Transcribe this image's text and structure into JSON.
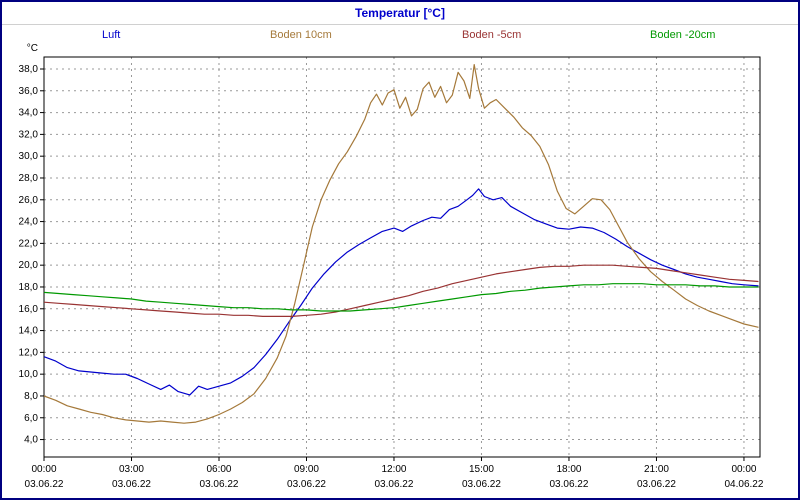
{
  "window": {
    "title": "Temperatur [°C]"
  },
  "legend": {
    "items": [
      {
        "label": "Luft",
        "color": "#0000cc"
      },
      {
        "label": "Boden 10cm",
        "color": "#a5793a"
      },
      {
        "label": "Boden -5cm",
        "color": "#993333"
      },
      {
        "label": "Boden -20cm",
        "color": "#009900"
      }
    ]
  },
  "chart_data": {
    "type": "line",
    "title": "Temperatur [°C]",
    "y_axis_label": "°C",
    "grid": true,
    "legend_position": "top",
    "xlim": [
      0,
      24.55
    ],
    "ylim": [
      2.4,
      39.1
    ],
    "x_unit": "hours from 03.06.22 00:00",
    "y_ticks": [
      {
        "value": 38,
        "label": "38,0"
      },
      {
        "value": 36,
        "label": "36,0"
      },
      {
        "value": 34,
        "label": "34,0"
      },
      {
        "value": 32,
        "label": "32,0"
      },
      {
        "value": 30,
        "label": "30,0"
      },
      {
        "value": 28,
        "label": "28,0"
      },
      {
        "value": 26,
        "label": "26,0"
      },
      {
        "value": 24,
        "label": "24,0"
      },
      {
        "value": 22,
        "label": "22,0"
      },
      {
        "value": 20,
        "label": "20,0"
      },
      {
        "value": 18,
        "label": "18,0"
      },
      {
        "value": 16,
        "label": "16,0"
      },
      {
        "value": 14,
        "label": "14,0"
      },
      {
        "value": 12,
        "label": "12,0"
      },
      {
        "value": 10,
        "label": "10,0"
      },
      {
        "value": 8,
        "label": "8,0"
      },
      {
        "value": 6,
        "label": "6,0"
      },
      {
        "value": 4,
        "label": "4,0"
      }
    ],
    "x_ticks": [
      {
        "hour": 0,
        "time": "00:00",
        "date": "03.06.22"
      },
      {
        "hour": 3,
        "time": "03:00",
        "date": "03.06.22"
      },
      {
        "hour": 6,
        "time": "06:00",
        "date": "03.06.22"
      },
      {
        "hour": 9,
        "time": "09:00",
        "date": "03.06.22"
      },
      {
        "hour": 12,
        "time": "12:00",
        "date": "03.06.22"
      },
      {
        "hour": 15,
        "time": "15:00",
        "date": "03.06.22"
      },
      {
        "hour": 18,
        "time": "18:00",
        "date": "03.06.22"
      },
      {
        "hour": 21,
        "time": "21:00",
        "date": "03.06.22"
      },
      {
        "hour": 24,
        "time": "00:00",
        "date": "04.06.22"
      }
    ],
    "series": [
      {
        "name": "Luft",
        "color": "#0000cc",
        "points": [
          [
            0,
            11.6
          ],
          [
            0.4,
            11.2
          ],
          [
            0.8,
            10.6
          ],
          [
            1.2,
            10.3
          ],
          [
            1.6,
            10.2
          ],
          [
            2,
            10.1
          ],
          [
            2.4,
            10.0
          ],
          [
            2.8,
            10.0
          ],
          [
            3.2,
            9.6
          ],
          [
            3.6,
            9.1
          ],
          [
            4,
            8.6
          ],
          [
            4.3,
            9.0
          ],
          [
            4.6,
            8.4
          ],
          [
            5,
            8.1
          ],
          [
            5.3,
            8.9
          ],
          [
            5.6,
            8.6
          ],
          [
            6,
            8.9
          ],
          [
            6.4,
            9.2
          ],
          [
            6.8,
            9.8
          ],
          [
            7.2,
            10.6
          ],
          [
            7.6,
            11.8
          ],
          [
            8,
            13.2
          ],
          [
            8.4,
            14.8
          ],
          [
            8.8,
            16.3
          ],
          [
            9.2,
            17.9
          ],
          [
            9.6,
            19.2
          ],
          [
            10,
            20.3
          ],
          [
            10.4,
            21.2
          ],
          [
            10.8,
            21.9
          ],
          [
            11.2,
            22.5
          ],
          [
            11.6,
            23.1
          ],
          [
            12,
            23.4
          ],
          [
            12.3,
            23.1
          ],
          [
            12.6,
            23.6
          ],
          [
            13,
            24.1
          ],
          [
            13.3,
            24.4
          ],
          [
            13.6,
            24.3
          ],
          [
            13.9,
            25.1
          ],
          [
            14.2,
            25.4
          ],
          [
            14.5,
            26.0
          ],
          [
            14.7,
            26.4
          ],
          [
            14.9,
            27.0
          ],
          [
            15.1,
            26.3
          ],
          [
            15.4,
            26.0
          ],
          [
            15.7,
            26.2
          ],
          [
            16,
            25.4
          ],
          [
            16.4,
            24.8
          ],
          [
            16.8,
            24.2
          ],
          [
            17.2,
            23.8
          ],
          [
            17.6,
            23.4
          ],
          [
            18,
            23.3
          ],
          [
            18.4,
            23.5
          ],
          [
            18.8,
            23.4
          ],
          [
            19.2,
            23.0
          ],
          [
            19.6,
            22.4
          ],
          [
            20,
            21.7
          ],
          [
            20.4,
            21.1
          ],
          [
            20.8,
            20.5
          ],
          [
            21.2,
            20.0
          ],
          [
            21.6,
            19.6
          ],
          [
            22,
            19.2
          ],
          [
            22.4,
            18.9
          ],
          [
            22.8,
            18.7
          ],
          [
            23.2,
            18.5
          ],
          [
            23.6,
            18.3
          ],
          [
            24,
            18.2
          ],
          [
            24.5,
            18.1
          ]
        ]
      },
      {
        "name": "Boden 10cm",
        "color": "#a5793a",
        "points": [
          [
            0,
            8.0
          ],
          [
            0.4,
            7.6
          ],
          [
            0.8,
            7.1
          ],
          [
            1.2,
            6.8
          ],
          [
            1.6,
            6.5
          ],
          [
            2,
            6.3
          ],
          [
            2.4,
            6.0
          ],
          [
            2.8,
            5.8
          ],
          [
            3.2,
            5.7
          ],
          [
            3.6,
            5.6
          ],
          [
            4,
            5.7
          ],
          [
            4.4,
            5.6
          ],
          [
            4.8,
            5.5
          ],
          [
            5.2,
            5.6
          ],
          [
            5.6,
            5.9
          ],
          [
            6,
            6.3
          ],
          [
            6.4,
            6.8
          ],
          [
            6.8,
            7.4
          ],
          [
            7.2,
            8.2
          ],
          [
            7.6,
            9.6
          ],
          [
            8,
            11.5
          ],
          [
            8.3,
            13.5
          ],
          [
            8.6,
            16.5
          ],
          [
            8.9,
            20.0
          ],
          [
            9.2,
            23.5
          ],
          [
            9.5,
            26.0
          ],
          [
            9.8,
            27.8
          ],
          [
            10.1,
            29.3
          ],
          [
            10.4,
            30.4
          ],
          [
            10.7,
            31.8
          ],
          [
            11,
            33.4
          ],
          [
            11.2,
            34.9
          ],
          [
            11.4,
            35.7
          ],
          [
            11.6,
            34.7
          ],
          [
            11.8,
            35.8
          ],
          [
            12,
            36.1
          ],
          [
            12.2,
            34.4
          ],
          [
            12.4,
            35.4
          ],
          [
            12.6,
            33.7
          ],
          [
            12.8,
            34.3
          ],
          [
            13,
            36.2
          ],
          [
            13.2,
            36.8
          ],
          [
            13.4,
            35.4
          ],
          [
            13.6,
            36.4
          ],
          [
            13.8,
            34.9
          ],
          [
            14,
            35.6
          ],
          [
            14.2,
            37.7
          ],
          [
            14.4,
            36.9
          ],
          [
            14.6,
            35.3
          ],
          [
            14.75,
            38.4
          ],
          [
            14.9,
            36.2
          ],
          [
            15.1,
            34.4
          ],
          [
            15.3,
            34.9
          ],
          [
            15.5,
            35.2
          ],
          [
            15.8,
            34.4
          ],
          [
            16.1,
            33.6
          ],
          [
            16.4,
            32.6
          ],
          [
            16.7,
            31.9
          ],
          [
            17,
            30.9
          ],
          [
            17.3,
            29.2
          ],
          [
            17.6,
            26.8
          ],
          [
            17.9,
            25.2
          ],
          [
            18.2,
            24.7
          ],
          [
            18.5,
            25.4
          ],
          [
            18.8,
            26.1
          ],
          [
            19.1,
            26.0
          ],
          [
            19.4,
            25.1
          ],
          [
            19.7,
            23.6
          ],
          [
            20,
            22.1
          ],
          [
            20.4,
            20.6
          ],
          [
            20.8,
            19.4
          ],
          [
            21.2,
            18.5
          ],
          [
            21.6,
            17.7
          ],
          [
            22,
            16.9
          ],
          [
            22.4,
            16.3
          ],
          [
            22.8,
            15.8
          ],
          [
            23.2,
            15.4
          ],
          [
            23.6,
            15.0
          ],
          [
            24,
            14.6
          ],
          [
            24.5,
            14.3
          ]
        ]
      },
      {
        "name": "Boden -5cm",
        "color": "#993333",
        "points": [
          [
            0,
            16.6
          ],
          [
            0.5,
            16.5
          ],
          [
            1,
            16.4
          ],
          [
            1.5,
            16.3
          ],
          [
            2,
            16.2
          ],
          [
            2.5,
            16.1
          ],
          [
            3,
            16.0
          ],
          [
            3.5,
            15.9
          ],
          [
            4,
            15.8
          ],
          [
            4.5,
            15.7
          ],
          [
            5,
            15.6
          ],
          [
            5.5,
            15.5
          ],
          [
            6,
            15.5
          ],
          [
            6.5,
            15.4
          ],
          [
            7,
            15.4
          ],
          [
            7.5,
            15.3
          ],
          [
            8,
            15.3
          ],
          [
            8.5,
            15.3
          ],
          [
            9,
            15.4
          ],
          [
            9.5,
            15.5
          ],
          [
            10,
            15.7
          ],
          [
            10.5,
            16.0
          ],
          [
            11,
            16.3
          ],
          [
            11.5,
            16.6
          ],
          [
            12,
            16.9
          ],
          [
            12.5,
            17.2
          ],
          [
            13,
            17.6
          ],
          [
            13.5,
            17.9
          ],
          [
            14,
            18.3
          ],
          [
            14.5,
            18.6
          ],
          [
            15,
            18.9
          ],
          [
            15.5,
            19.2
          ],
          [
            16,
            19.4
          ],
          [
            16.5,
            19.6
          ],
          [
            17,
            19.8
          ],
          [
            17.5,
            19.9
          ],
          [
            18,
            19.9
          ],
          [
            18.5,
            20.0
          ],
          [
            19,
            20.0
          ],
          [
            19.5,
            20.0
          ],
          [
            20,
            19.9
          ],
          [
            20.5,
            19.8
          ],
          [
            21,
            19.7
          ],
          [
            21.5,
            19.5
          ],
          [
            22,
            19.3
          ],
          [
            22.5,
            19.1
          ],
          [
            23,
            18.9
          ],
          [
            23.5,
            18.7
          ],
          [
            24,
            18.6
          ],
          [
            24.5,
            18.5
          ]
        ]
      },
      {
        "name": "Boden -20cm",
        "color": "#009900",
        "points": [
          [
            0,
            17.5
          ],
          [
            0.5,
            17.4
          ],
          [
            1,
            17.3
          ],
          [
            1.5,
            17.2
          ],
          [
            2,
            17.1
          ],
          [
            2.5,
            17.0
          ],
          [
            3,
            16.9
          ],
          [
            3.5,
            16.7
          ],
          [
            4,
            16.6
          ],
          [
            4.5,
            16.5
          ],
          [
            5,
            16.4
          ],
          [
            5.5,
            16.3
          ],
          [
            6,
            16.2
          ],
          [
            6.5,
            16.1
          ],
          [
            7,
            16.1
          ],
          [
            7.5,
            16.0
          ],
          [
            8,
            16.0
          ],
          [
            8.5,
            15.9
          ],
          [
            9,
            15.9
          ],
          [
            9.5,
            15.8
          ],
          [
            10,
            15.8
          ],
          [
            10.5,
            15.8
          ],
          [
            11,
            15.9
          ],
          [
            11.5,
            16.0
          ],
          [
            12,
            16.1
          ],
          [
            12.5,
            16.3
          ],
          [
            13,
            16.5
          ],
          [
            13.5,
            16.7
          ],
          [
            14,
            16.9
          ],
          [
            14.5,
            17.1
          ],
          [
            15,
            17.3
          ],
          [
            15.5,
            17.4
          ],
          [
            16,
            17.6
          ],
          [
            16.5,
            17.7
          ],
          [
            17,
            17.9
          ],
          [
            17.5,
            18.0
          ],
          [
            18,
            18.1
          ],
          [
            18.5,
            18.2
          ],
          [
            19,
            18.2
          ],
          [
            19.5,
            18.3
          ],
          [
            20,
            18.3
          ],
          [
            20.5,
            18.3
          ],
          [
            21,
            18.2
          ],
          [
            21.5,
            18.2
          ],
          [
            22,
            18.2
          ],
          [
            22.5,
            18.1
          ],
          [
            23,
            18.1
          ],
          [
            23.5,
            18.0
          ],
          [
            24,
            18.0
          ],
          [
            24.5,
            18.0
          ]
        ]
      }
    ]
  }
}
